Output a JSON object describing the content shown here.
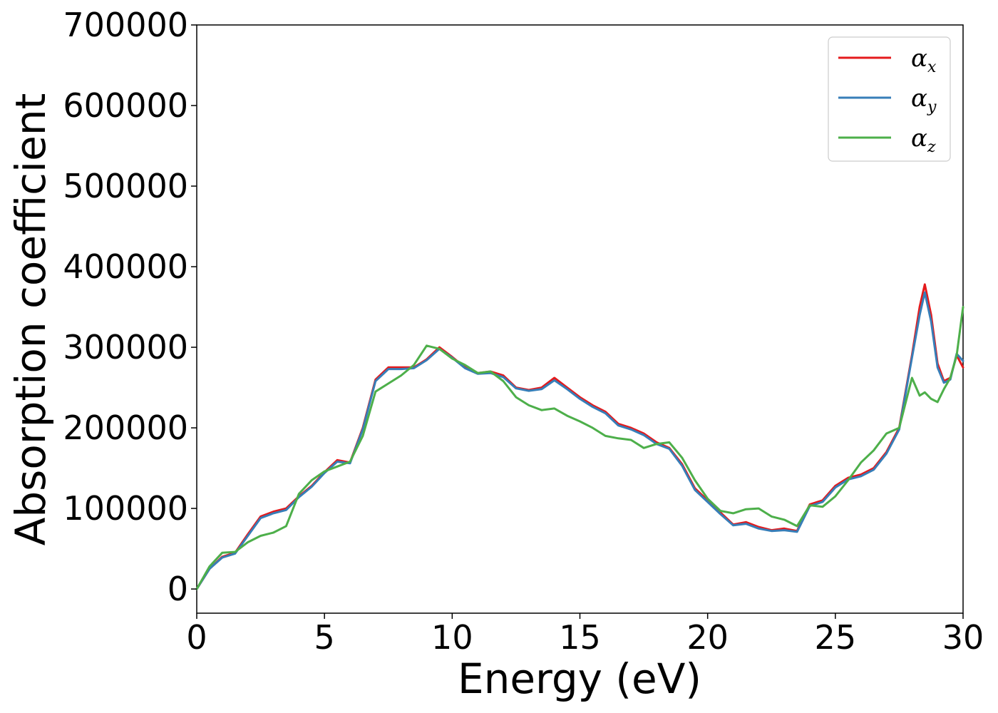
{
  "chart_data": {
    "type": "line",
    "xlabel": "Energy (eV)",
    "ylabel": "Absorption coefficient",
    "xlim": [
      0,
      30
    ],
    "ylim": [
      -30000,
      700000
    ],
    "x_ticks": [
      "0",
      "5",
      "10",
      "15",
      "20",
      "25",
      "30"
    ],
    "y_ticks": [
      "0",
      "100000",
      "200000",
      "300000",
      "400000",
      "500000",
      "600000",
      "700000"
    ],
    "grid": false,
    "legend_position": "top-right",
    "x": [
      0,
      0.5,
      1,
      1.5,
      2,
      2.5,
      3,
      3.5,
      4,
      4.5,
      5,
      5.5,
      6,
      6.5,
      7,
      7.5,
      8,
      8.5,
      9,
      9.5,
      10,
      10.5,
      11,
      11.5,
      12,
      12.5,
      13,
      13.5,
      14,
      14.5,
      15,
      15.5,
      16,
      16.5,
      17,
      17.5,
      18,
      18.5,
      19,
      19.5,
      20,
      20.5,
      21,
      21.5,
      22,
      22.5,
      23,
      23.5,
      24,
      24.5,
      25,
      25.5,
      26,
      26.5,
      27,
      27.5,
      28,
      28.3,
      28.5,
      28.75,
      29,
      29.25,
      29.5,
      29.75,
      30
    ],
    "series": [
      {
        "name": "α",
        "subscript": "x",
        "color": "#e41a1c",
        "values": [
          0,
          25000,
          40000,
          45000,
          68000,
          90000,
          96000,
          100000,
          115000,
          128000,
          145000,
          160000,
          157000,
          200000,
          260000,
          275000,
          275000,
          275000,
          285000,
          300000,
          288000,
          275000,
          268000,
          270000,
          265000,
          250000,
          247000,
          250000,
          262000,
          250000,
          238000,
          228000,
          220000,
          205000,
          200000,
          193000,
          182000,
          175000,
          155000,
          125000,
          110000,
          95000,
          80000,
          83000,
          77000,
          73000,
          75000,
          72000,
          105000,
          110000,
          128000,
          138000,
          142000,
          150000,
          170000,
          200000,
          290000,
          350000,
          378000,
          340000,
          280000,
          258000,
          262000,
          290000,
          275000
        ]
      },
      {
        "name": "α",
        "subscript": "y",
        "color": "#377eb8",
        "values": [
          0,
          25000,
          39000,
          44000,
          66000,
          88000,
          94000,
          98000,
          114000,
          127000,
          144000,
          158000,
          156000,
          198000,
          258000,
          273000,
          273000,
          274000,
          284000,
          298000,
          287000,
          274000,
          267000,
          268000,
          263000,
          249000,
          246000,
          248000,
          259000,
          248000,
          236000,
          226000,
          218000,
          203000,
          198000,
          191000,
          180000,
          174000,
          153000,
          123000,
          108000,
          93000,
          79000,
          81000,
          75000,
          72000,
          73000,
          71000,
          103000,
          108000,
          126000,
          136000,
          140000,
          148000,
          168000,
          198000,
          287000,
          340000,
          368000,
          332000,
          275000,
          256000,
          260000,
          292000,
          283000
        ]
      },
      {
        "name": "α",
        "subscript": "z",
        "color": "#4daf4a",
        "values": [
          0,
          28000,
          45000,
          46000,
          58000,
          66000,
          70000,
          78000,
          118000,
          135000,
          146000,
          152000,
          158000,
          190000,
          245000,
          255000,
          265000,
          278000,
          302000,
          298000,
          286000,
          278000,
          268000,
          270000,
          258000,
          238000,
          228000,
          222000,
          224000,
          215000,
          208000,
          200000,
          190000,
          187000,
          185000,
          175000,
          180000,
          182000,
          163000,
          135000,
          112000,
          97000,
          94000,
          99000,
          100000,
          90000,
          86000,
          78000,
          104000,
          102000,
          115000,
          135000,
          157000,
          172000,
          193000,
          200000,
          262000,
          240000,
          244000,
          236000,
          232000,
          248000,
          262000,
          290000,
          350000
        ]
      }
    ]
  }
}
